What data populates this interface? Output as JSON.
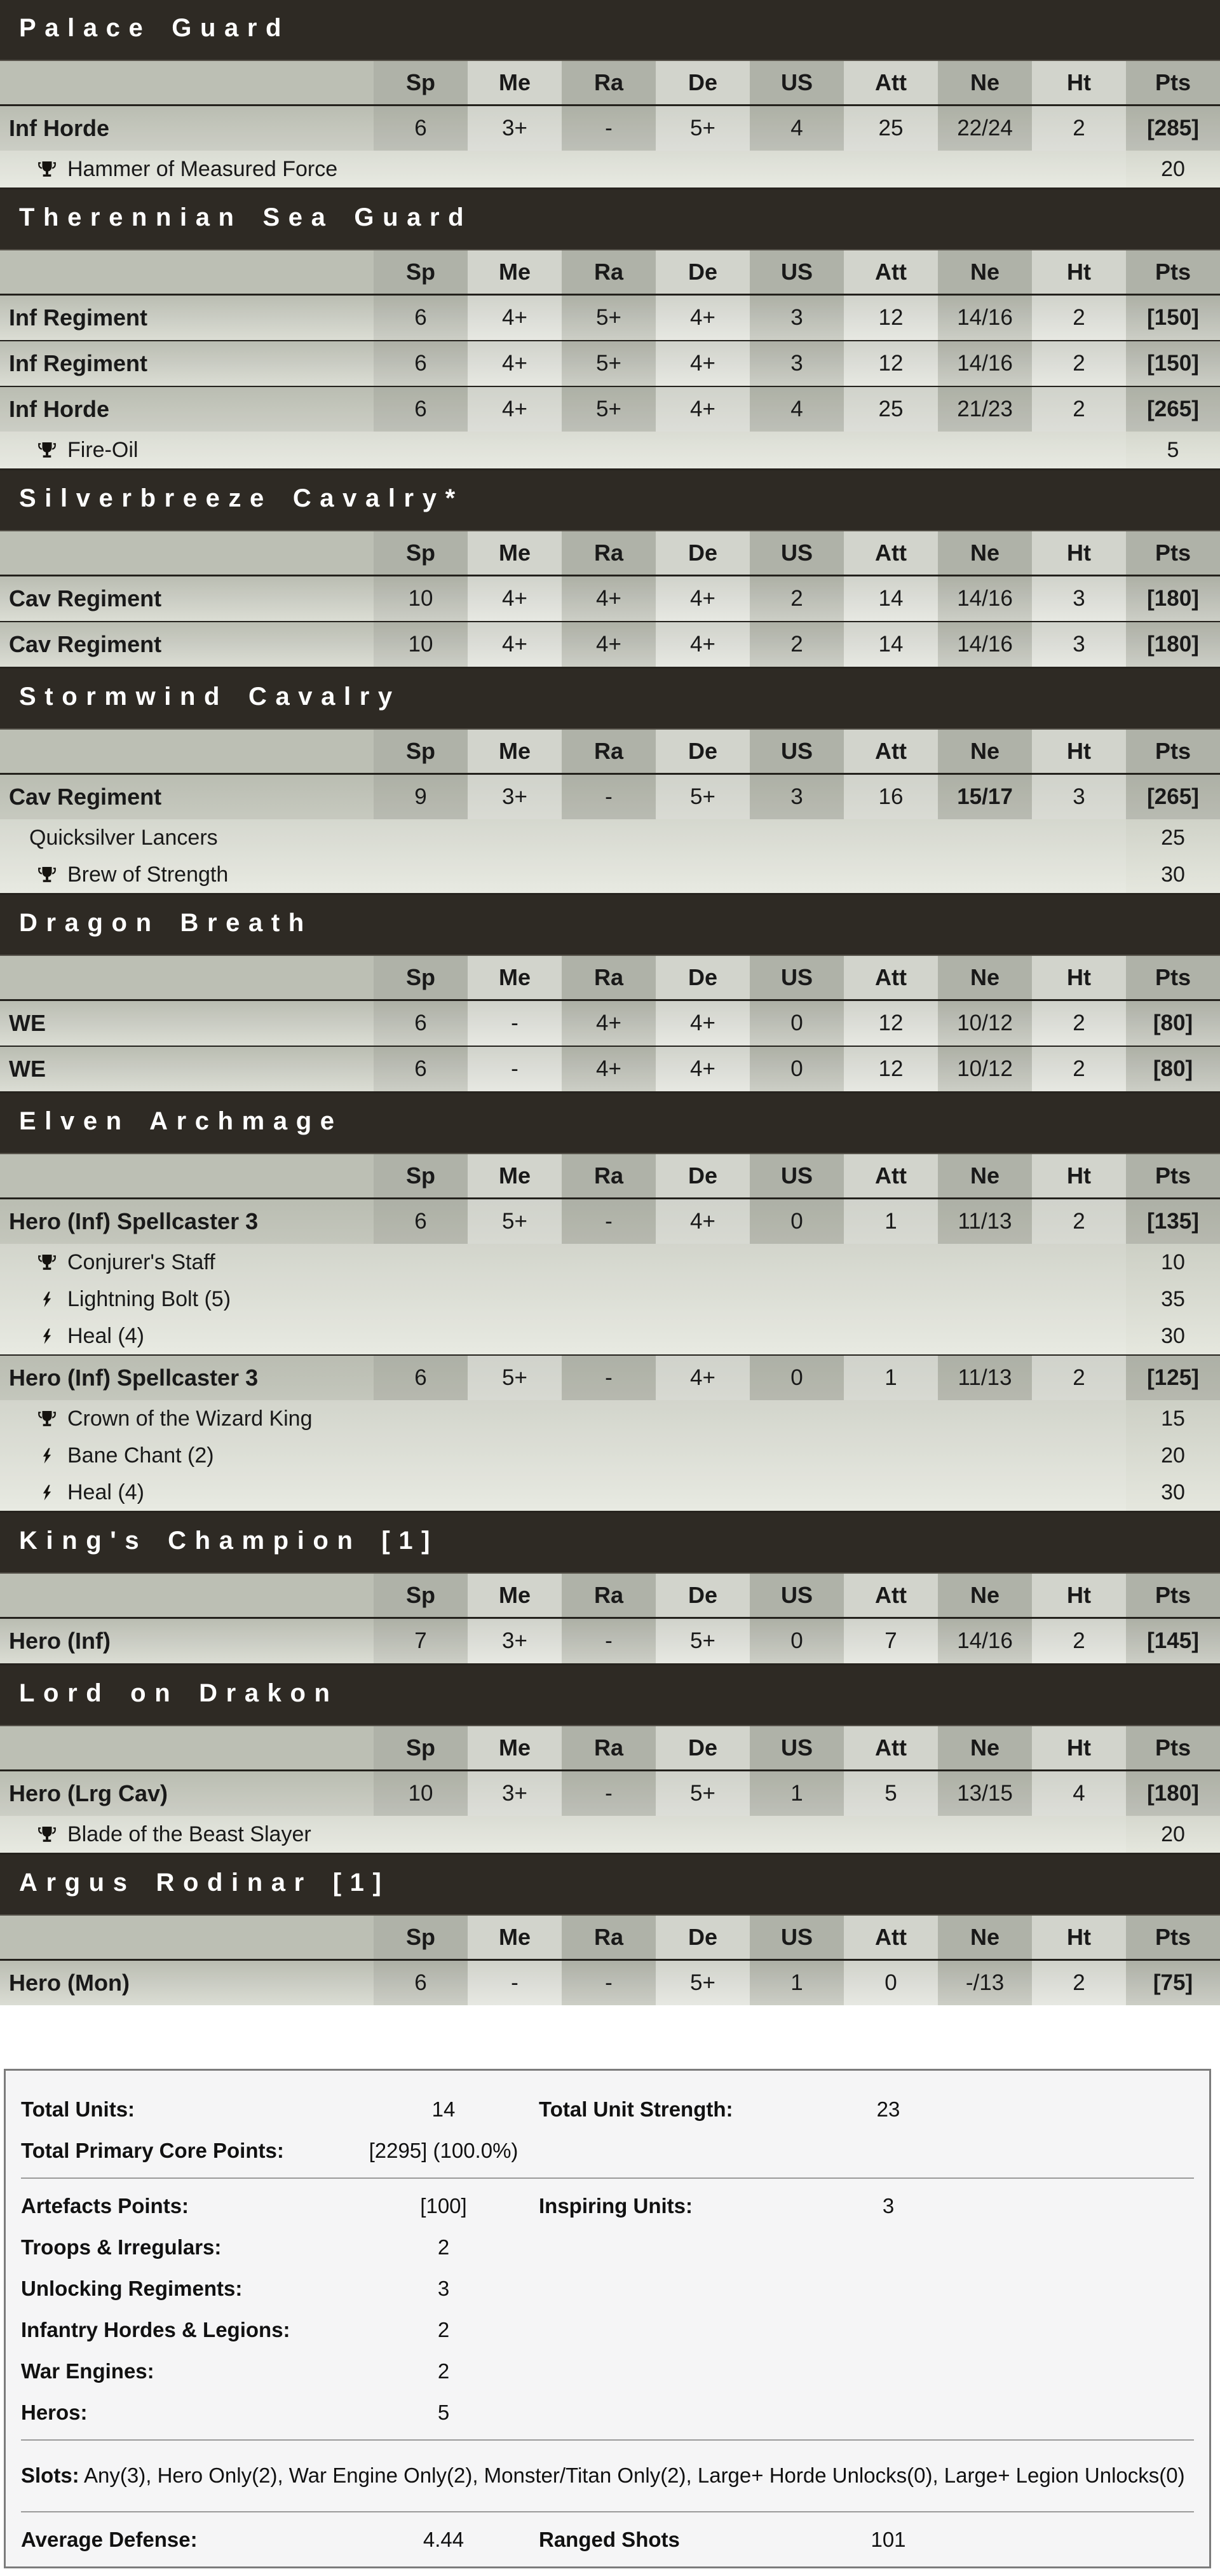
{
  "columns": [
    {
      "key": "sp",
      "label": "Sp"
    },
    {
      "key": "me",
      "label": "Me"
    },
    {
      "key": "ra",
      "label": "Ra"
    },
    {
      "key": "de",
      "label": "De"
    },
    {
      "key": "us",
      "label": "US"
    },
    {
      "key": "att",
      "label": "Att"
    },
    {
      "key": "ne",
      "label": "Ne"
    },
    {
      "key": "ht",
      "label": "Ht"
    },
    {
      "key": "pts",
      "label": "Pts"
    }
  ],
  "colors": {
    "section_header_bg": "#2e2a24",
    "section_header_text": "#ffffff",
    "table_top": "#b3b6ab",
    "table_bottom": "#e5e7de",
    "summary_bg": "#f5f5f6",
    "summary_border": "#7c7c7c"
  },
  "sections": [
    {
      "title": "Palace Guard",
      "rows": [
        {
          "type": "unit",
          "name": "Inf Horde",
          "sp": "6",
          "me": "3+",
          "ra": "-",
          "de": "5+",
          "us": "4",
          "att": "25",
          "ne": "22/24",
          "ht": "2",
          "pts": "[285]"
        },
        {
          "type": "upgrade",
          "icon": "trophy",
          "name": "Hammer of Measured Force",
          "pts": "20"
        }
      ]
    },
    {
      "title": "Therennian Sea Guard",
      "rows": [
        {
          "type": "unit",
          "name": "Inf Regiment",
          "sp": "6",
          "me": "4+",
          "ra": "5+",
          "de": "4+",
          "us": "3",
          "att": "12",
          "ne": "14/16",
          "ht": "2",
          "pts": "[150]"
        },
        {
          "type": "unit",
          "name": "Inf Regiment",
          "sp": "6",
          "me": "4+",
          "ra": "5+",
          "de": "4+",
          "us": "3",
          "att": "12",
          "ne": "14/16",
          "ht": "2",
          "pts": "[150]"
        },
        {
          "type": "unit",
          "name": "Inf Horde",
          "sp": "6",
          "me": "4+",
          "ra": "5+",
          "de": "4+",
          "us": "4",
          "att": "25",
          "ne": "21/23",
          "ht": "2",
          "pts": "[265]"
        },
        {
          "type": "upgrade",
          "icon": "trophy",
          "name": "Fire-Oil",
          "pts": "5"
        }
      ]
    },
    {
      "title": "Silverbreeze Cavalry*",
      "rows": [
        {
          "type": "unit",
          "name": "Cav Regiment",
          "sp": "10",
          "me": "4+",
          "ra": "4+",
          "de": "4+",
          "us": "2",
          "att": "14",
          "ne": "14/16",
          "ht": "3",
          "pts": "[180]"
        },
        {
          "type": "unit",
          "name": "Cav Regiment",
          "sp": "10",
          "me": "4+",
          "ra": "4+",
          "de": "4+",
          "us": "2",
          "att": "14",
          "ne": "14/16",
          "ht": "3",
          "pts": "[180]"
        }
      ]
    },
    {
      "title": "Stormwind Cavalry",
      "rows": [
        {
          "type": "unit",
          "name": "Cav Regiment",
          "sp": "9",
          "me": "3+",
          "ra": "-",
          "de": "5+",
          "us": "3",
          "att": "16",
          "ne": "15/17",
          "ne_bold": true,
          "ht": "3",
          "pts": "[265]"
        },
        {
          "type": "upgrade",
          "icon": "none",
          "name": "Quicksilver Lancers",
          "pts": "25"
        },
        {
          "type": "upgrade",
          "icon": "trophy",
          "name": "Brew of Strength",
          "pts": "30"
        }
      ]
    },
    {
      "title": "Dragon Breath",
      "rows": [
        {
          "type": "unit",
          "name": "WE",
          "sp": "6",
          "me": "-",
          "ra": "4+",
          "de": "4+",
          "us": "0",
          "att": "12",
          "ne": "10/12",
          "ht": "2",
          "pts": "[80]"
        },
        {
          "type": "unit",
          "name": "WE",
          "sp": "6",
          "me": "-",
          "ra": "4+",
          "de": "4+",
          "us": "0",
          "att": "12",
          "ne": "10/12",
          "ht": "2",
          "pts": "[80]"
        }
      ]
    },
    {
      "title": "Elven Archmage",
      "rows": [
        {
          "type": "unit",
          "name": "Hero (Inf) Spellcaster 3",
          "sp": "6",
          "me": "5+",
          "ra": "-",
          "de": "4+",
          "us": "0",
          "att": "1",
          "ne": "11/13",
          "ht": "2",
          "pts": "[135]"
        },
        {
          "type": "upgrade",
          "icon": "trophy",
          "name": "Conjurer's Staff",
          "pts": "10"
        },
        {
          "type": "upgrade",
          "icon": "bolt",
          "name": "Lightning Bolt (5)",
          "pts": "35"
        },
        {
          "type": "upgrade",
          "icon": "bolt",
          "name": "Heal (4)",
          "pts": "30"
        },
        {
          "type": "unit",
          "name": "Hero (Inf) Spellcaster 3",
          "sp": "6",
          "me": "5+",
          "ra": "-",
          "de": "4+",
          "us": "0",
          "att": "1",
          "ne": "11/13",
          "ht": "2",
          "pts": "[125]"
        },
        {
          "type": "upgrade",
          "icon": "trophy",
          "name": "Crown of the Wizard King",
          "pts": "15"
        },
        {
          "type": "upgrade",
          "icon": "bolt",
          "name": "Bane Chant (2)",
          "pts": "20"
        },
        {
          "type": "upgrade",
          "icon": "bolt",
          "name": "Heal (4)",
          "pts": "30"
        }
      ]
    },
    {
      "title": "King's Champion [1]",
      "rows": [
        {
          "type": "unit",
          "name": "Hero (Inf)",
          "sp": "7",
          "me": "3+",
          "ra": "-",
          "de": "5+",
          "us": "0",
          "att": "7",
          "ne": "14/16",
          "ht": "2",
          "pts": "[145]"
        }
      ]
    },
    {
      "title": "Lord on Drakon",
      "rows": [
        {
          "type": "unit",
          "name": "Hero (Lrg Cav)",
          "sp": "10",
          "me": "3+",
          "ra": "-",
          "de": "5+",
          "us": "1",
          "att": "5",
          "ne": "13/15",
          "ht": "4",
          "pts": "[180]"
        },
        {
          "type": "upgrade",
          "icon": "trophy",
          "name": "Blade of the Beast Slayer",
          "pts": "20"
        }
      ]
    },
    {
      "title": "Argus Rodinar [1]",
      "rows": [
        {
          "type": "unit",
          "name": "Hero (Mon)",
          "sp": "6",
          "me": "-",
          "ra": "-",
          "de": "5+",
          "us": "1",
          "att": "0",
          "ne": "-/13",
          "ht": "2",
          "pts": "[75]"
        }
      ]
    }
  ],
  "summary": {
    "rows": [
      {
        "type": "pair",
        "label": "Total Units:",
        "value": "14",
        "label2": "Total Unit Strength:",
        "value2": "23"
      },
      {
        "type": "pair",
        "label": "Total Primary Core Points:",
        "value": "[2295] (100.0%)",
        "label2": "",
        "value2": ""
      },
      {
        "type": "divider"
      },
      {
        "type": "pair",
        "label": "Artefacts Points:",
        "value": "[100]",
        "label2": "Inspiring Units:",
        "value2": "3"
      },
      {
        "type": "pair",
        "label": "Troops & Irregulars:",
        "value": "2",
        "label2": "",
        "value2": ""
      },
      {
        "type": "pair",
        "label": "Unlocking Regiments:",
        "value": "3",
        "label2": "",
        "value2": ""
      },
      {
        "type": "pair",
        "label": "Infantry Hordes & Legions:",
        "value": "2",
        "label2": "",
        "value2": ""
      },
      {
        "type": "pair",
        "label": "War Engines:",
        "value": "2",
        "label2": "",
        "value2": ""
      },
      {
        "type": "pair",
        "label": "Heros:",
        "value": "5",
        "label2": "",
        "value2": ""
      },
      {
        "type": "divider"
      },
      {
        "type": "slots",
        "label": "Slots:",
        "text": "Any(3), Hero Only(2), War Engine Only(2), Monster/Titan Only(2), Large+ Horde Unlocks(0), Large+ Legion Unlocks(0)"
      },
      {
        "type": "divider"
      },
      {
        "type": "pair",
        "label": "Average Defense:",
        "value": "4.44",
        "label2": "Ranged Shots",
        "value2": "101"
      }
    ]
  }
}
